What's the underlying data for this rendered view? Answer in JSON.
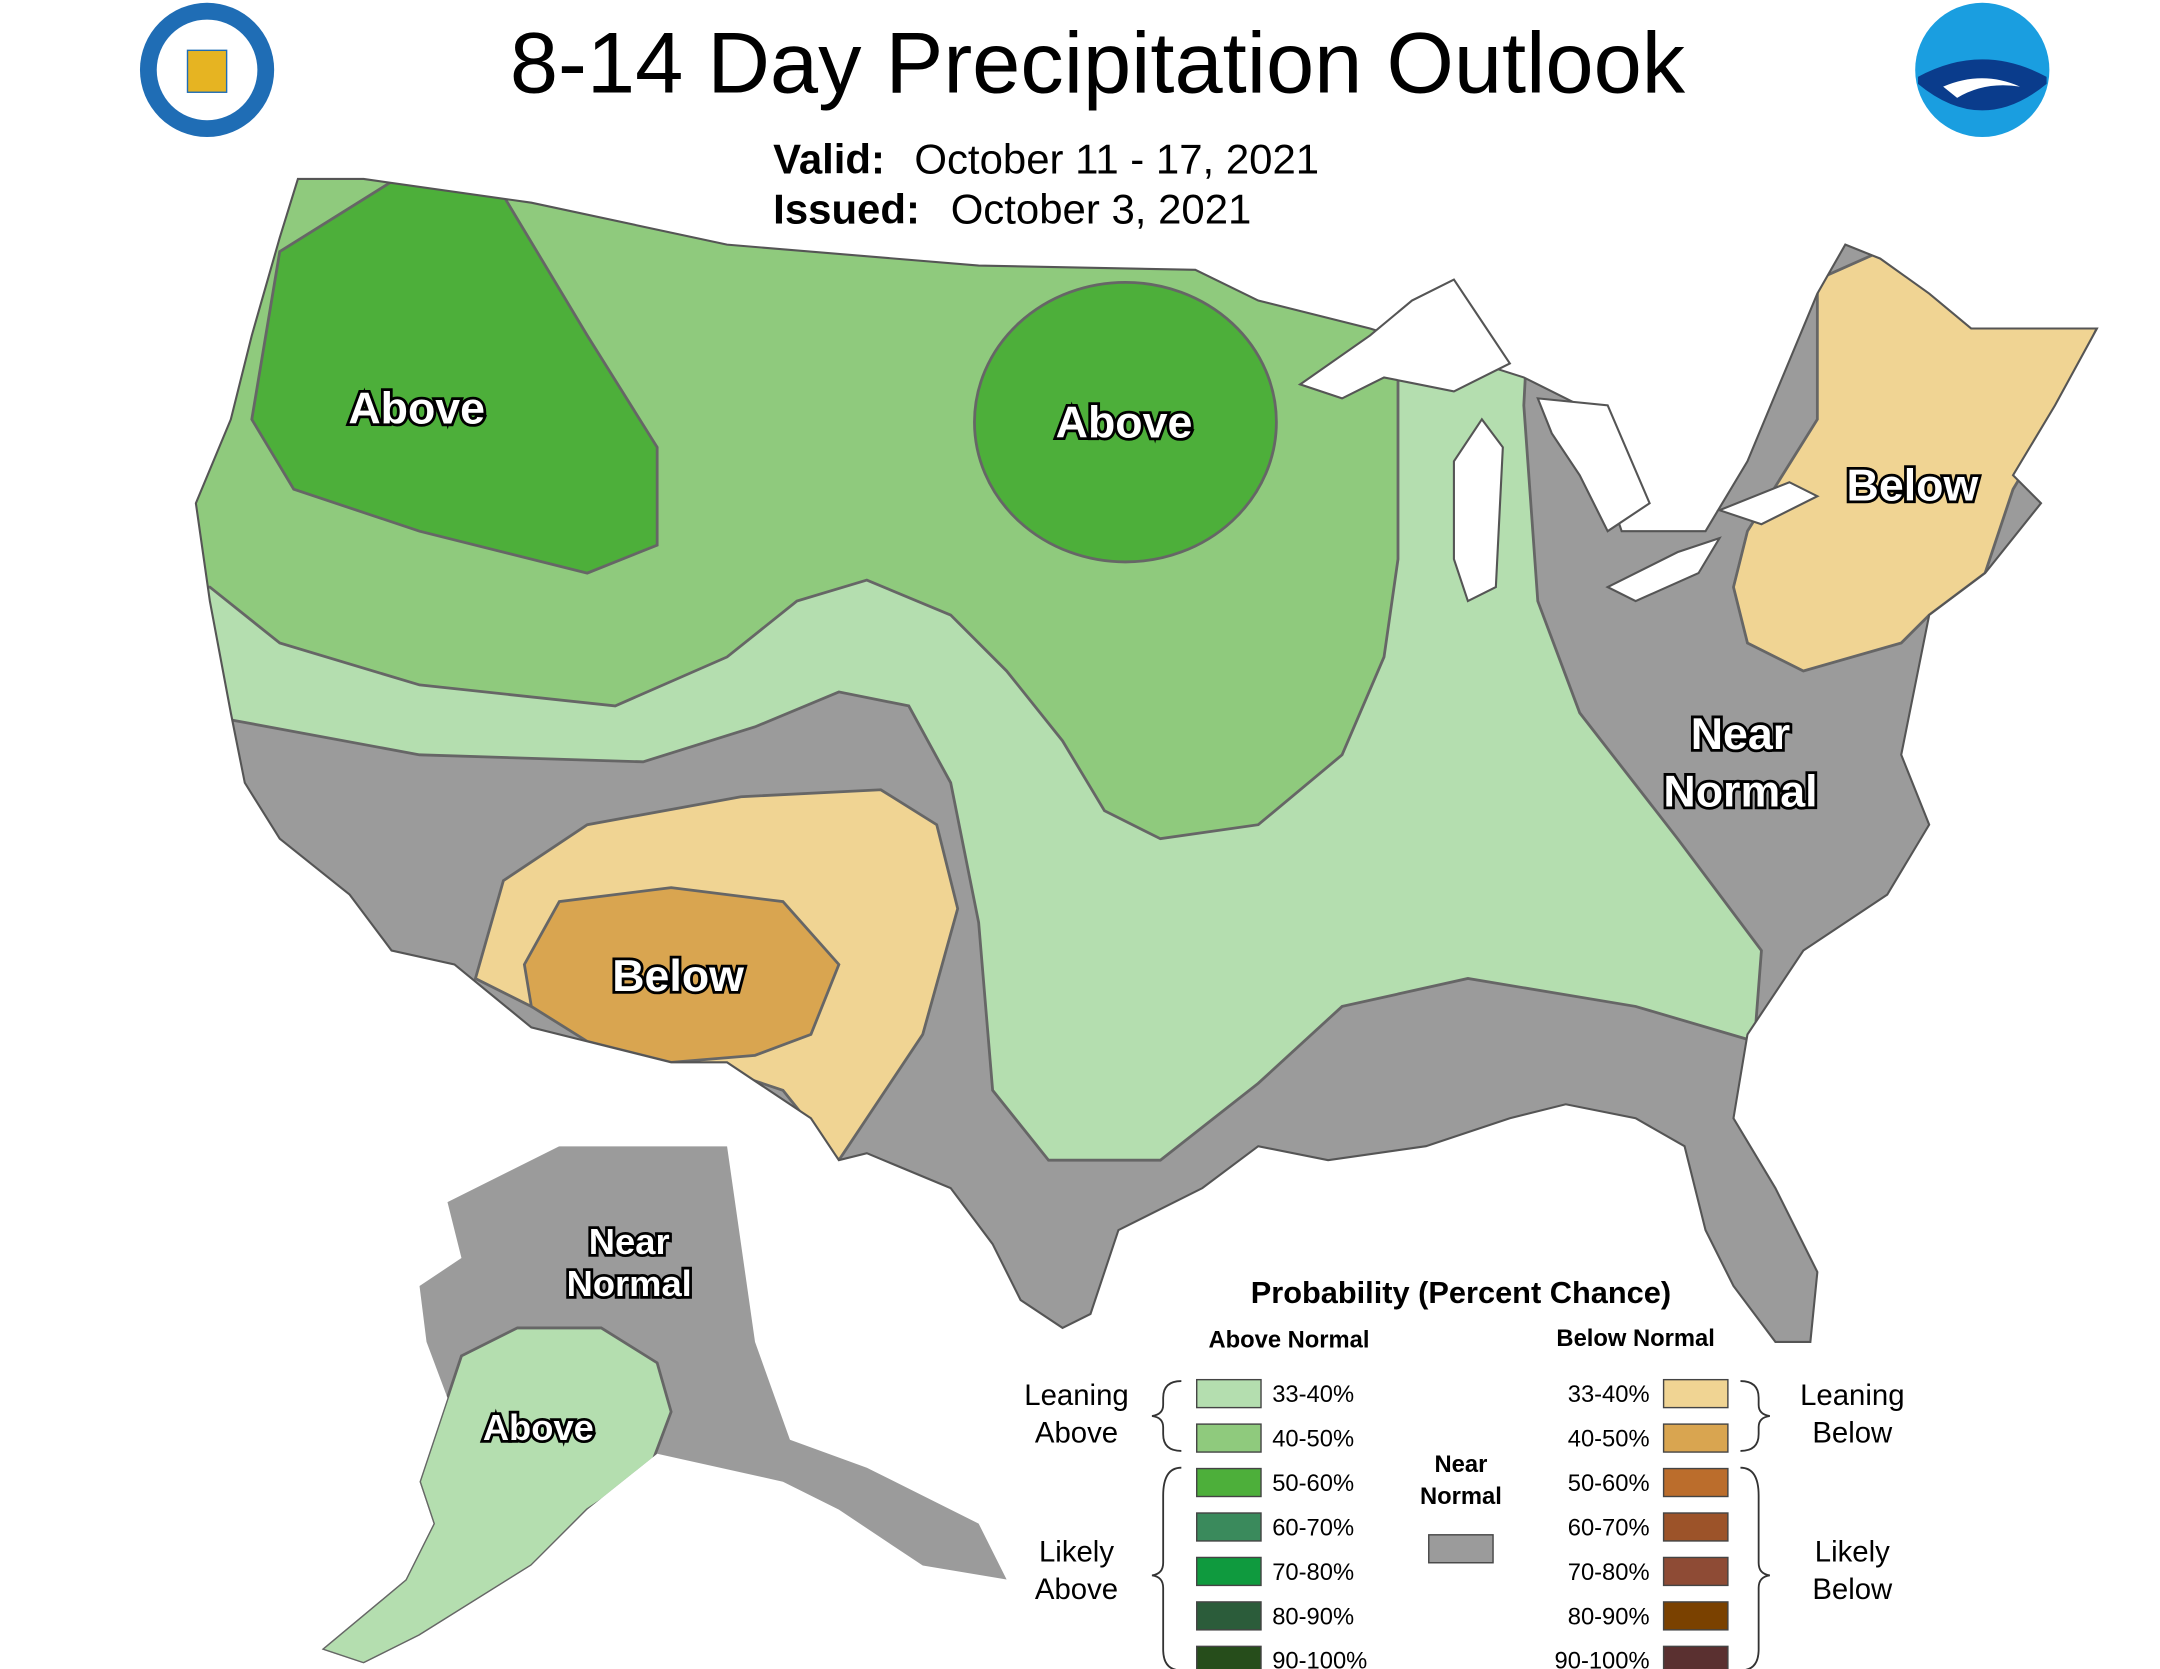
{
  "header": {
    "title": "8-14 Day Precipitation Outlook",
    "valid_label": "Valid:",
    "valid": "October 11 - 17, 2021",
    "issued_label": "Issued:",
    "issued": "October 3, 2021"
  },
  "map": {
    "labels": [
      {
        "lines": [
          "Above"
        ]
      },
      {
        "lines": [
          "Above"
        ]
      },
      {
        "lines": [
          "Below"
        ]
      },
      {
        "lines": [
          "Below"
        ]
      },
      {
        "lines": [
          "Near",
          "Normal"
        ]
      },
      {
        "lines": [
          "Near",
          "Normal"
        ]
      },
      {
        "lines": [
          "Above"
        ]
      }
    ]
  },
  "legend": {
    "title": "Probability (Percent Chance)",
    "above_header": "Above Normal",
    "below_header": "Below Normal",
    "near_label": [
      "Near",
      "Normal"
    ],
    "near_color": "#9b9b9b",
    "leaning_above": [
      "Leaning",
      "Above"
    ],
    "likely_above": [
      "Likely",
      "Above"
    ],
    "leaning_below": [
      "Leaning",
      "Below"
    ],
    "likely_below": [
      "Likely",
      "Below"
    ],
    "above": [
      {
        "label": "33-40%",
        "color": "#b4deaf"
      },
      {
        "label": "40-50%",
        "color": "#8fca7d"
      },
      {
        "label": "50-60%",
        "color": "#4daf3a"
      },
      {
        "label": "60-70%",
        "color": "#3a8a5c"
      },
      {
        "label": "70-80%",
        "color": "#0f9a3e"
      },
      {
        "label": "80-90%",
        "color": "#2b5c3a"
      },
      {
        "label": "90-100%",
        "color": "#264d1b"
      }
    ],
    "below": [
      {
        "label": "33-40%",
        "color": "#f0d493"
      },
      {
        "label": "40-50%",
        "color": "#d9a550"
      },
      {
        "label": "50-60%",
        "color": "#bb6d2c"
      },
      {
        "label": "60-70%",
        "color": "#9c5329"
      },
      {
        "label": "70-80%",
        "color": "#8e4b35"
      },
      {
        "label": "80-90%",
        "color": "#7a4100"
      },
      {
        "label": "90-100%",
        "color": "#5a3030"
      }
    ]
  }
}
